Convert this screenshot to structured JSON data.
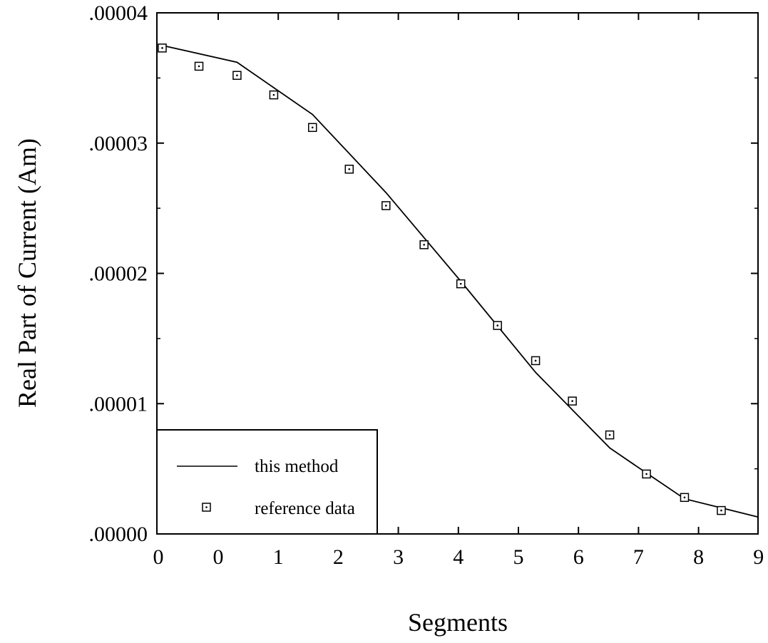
{
  "chart_data": {
    "type": "line",
    "title": "",
    "xlabel": "Segments",
    "ylabel": "Real Part of Current (Am)",
    "xlim": [
      0,
      9
    ],
    "ylim": [
      0,
      4e-05
    ],
    "x_tick_labels": [
      "0",
      "0",
      "1",
      "2",
      "3",
      "4",
      "5",
      "6",
      "7",
      "8",
      "9"
    ],
    "y_tick_labels": [
      ".00000",
      ".00001",
      ".00002",
      ".00003",
      ".00004"
    ],
    "y_ticks": [
      0,
      1e-05,
      2e-05,
      3e-05,
      4e-05
    ],
    "grid": false,
    "legend_position": "bottom-left",
    "series": [
      {
        "name": "this method",
        "style": "line",
        "color": "#000000",
        "x": [
          0.08,
          1.2,
          2.33,
          3.43,
          4.55,
          5.67,
          6.78,
          7.38,
          7.9,
          9.0
        ],
        "y": [
          3.75e-05,
          3.62e-05,
          3.22e-05,
          2.62e-05,
          1.94e-05,
          1.24e-05,
          6.6e-06,
          4.5e-06,
          2.7e-06,
          1.3e-06
        ]
      },
      {
        "name": "reference data",
        "style": "square-marker",
        "color": "#000000",
        "x": [
          0.08,
          0.63,
          1.2,
          1.75,
          2.33,
          2.88,
          3.43,
          4.0,
          4.55,
          5.1,
          5.67,
          6.22,
          6.78,
          7.33,
          7.9,
          8.45
        ],
        "y": [
          3.73e-05,
          3.59e-05,
          3.52e-05,
          3.37e-05,
          3.12e-05,
          2.8e-05,
          2.52e-05,
          2.22e-05,
          1.92e-05,
          1.6e-05,
          1.33e-05,
          1.02e-05,
          7.6e-06,
          4.6e-06,
          2.8e-06,
          1.8e-06
        ]
      }
    ]
  }
}
